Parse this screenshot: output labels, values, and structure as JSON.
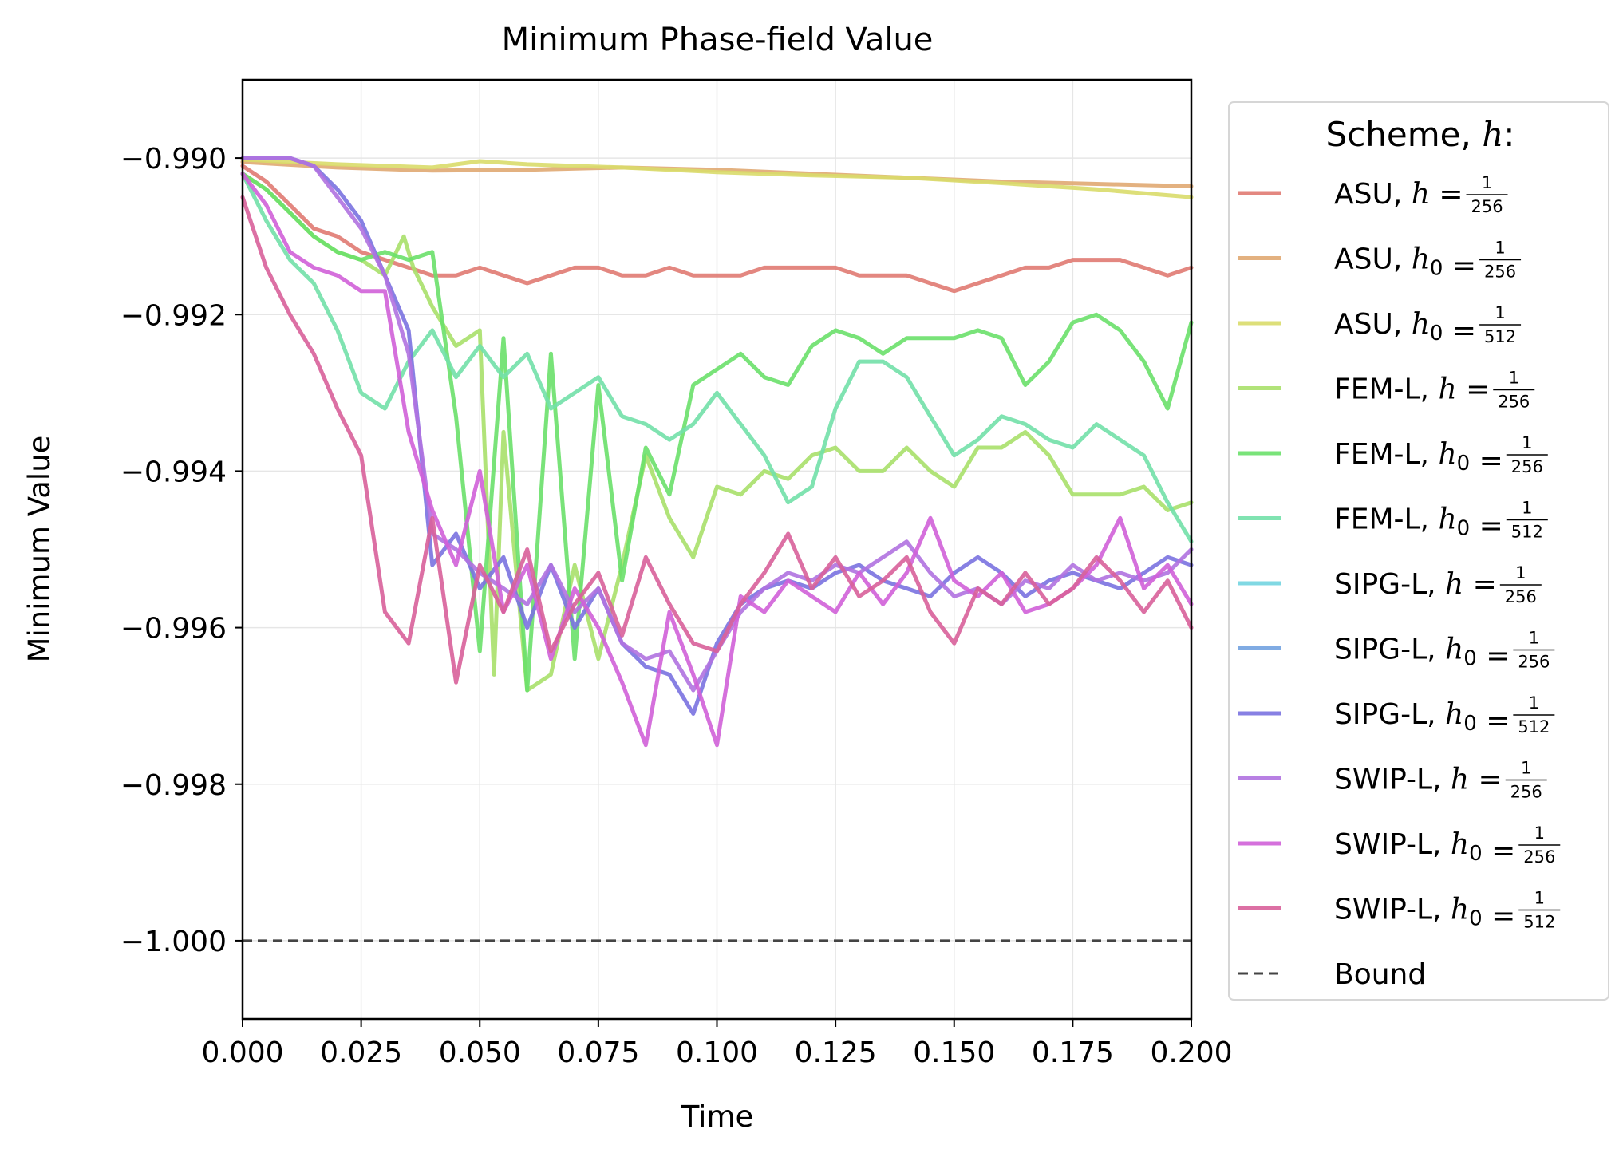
{
  "chart_data": {
    "type": "line",
    "title": "Minimum Phase-field Value",
    "xlabel": "Time",
    "ylabel": "Minimum Value",
    "xlim": [
      0.0,
      0.2
    ],
    "ylim": [
      -1.001,
      -0.989
    ],
    "grid": true,
    "x_ticks": [
      "0.000",
      "0.025",
      "0.050",
      "0.075",
      "0.100",
      "0.125",
      "0.150",
      "0.175",
      "0.200"
    ],
    "y_ticks": [
      "−0.990",
      "−0.992",
      "−0.994",
      "−0.996",
      "−0.998",
      "−1.000"
    ],
    "x_tick_values": [
      0.0,
      0.025,
      0.05,
      0.075,
      0.1,
      0.125,
      0.15,
      0.175,
      0.2
    ],
    "y_tick_values": [
      -0.99,
      -0.992,
      -0.994,
      -0.996,
      -0.998,
      -1.0
    ],
    "legend": {
      "title_prefix": "Scheme,",
      "title_var": "h",
      "title_suffix": ":",
      "placement": "outside-right"
    },
    "bound": {
      "name": "Bound",
      "value": -1.0,
      "color": "#444444"
    },
    "series": [
      {
        "name": "ASU, h = 1/256",
        "scheme": "ASU,",
        "var": "h",
        "sub": "",
        "denom": "256",
        "color": "#e07a72",
        "x": [
          0.0,
          0.005,
          0.01,
          0.015,
          0.02,
          0.025,
          0.03,
          0.035,
          0.04,
          0.045,
          0.05,
          0.055,
          0.06,
          0.065,
          0.07,
          0.075,
          0.08,
          0.085,
          0.09,
          0.095,
          0.1,
          0.105,
          0.11,
          0.115,
          0.12,
          0.125,
          0.13,
          0.135,
          0.14,
          0.145,
          0.15,
          0.155,
          0.16,
          0.165,
          0.17,
          0.175,
          0.18,
          0.185,
          0.19,
          0.195,
          0.2
        ],
        "y": [
          -0.9901,
          -0.9903,
          -0.9906,
          -0.9909,
          -0.991,
          -0.9912,
          -0.9913,
          -0.9914,
          -0.9915,
          -0.9915,
          -0.9914,
          -0.9915,
          -0.9916,
          -0.9915,
          -0.9914,
          -0.9914,
          -0.9915,
          -0.9915,
          -0.9914,
          -0.9915,
          -0.9915,
          -0.9915,
          -0.9914,
          -0.9914,
          -0.9914,
          -0.9914,
          -0.9915,
          -0.9915,
          -0.9915,
          -0.9916,
          -0.9917,
          -0.9916,
          -0.9915,
          -0.9914,
          -0.9914,
          -0.9913,
          -0.9913,
          -0.9913,
          -0.9914,
          -0.9915,
          -0.9914
        ]
      },
      {
        "name": "ASU, h0 = 1/256",
        "scheme": "ASU,",
        "var": "h",
        "sub": "0",
        "denom": "256",
        "color": "#e0a872",
        "x": [
          0.0,
          0.02,
          0.04,
          0.06,
          0.08,
          0.1,
          0.12,
          0.14,
          0.16,
          0.18,
          0.2
        ],
        "y": [
          -0.99005,
          -0.99012,
          -0.99016,
          -0.99015,
          -0.99012,
          -0.99015,
          -0.9902,
          -0.99025,
          -0.9903,
          -0.99033,
          -0.99036
        ]
      },
      {
        "name": "ASU, h0 = 1/512",
        "scheme": "ASU,",
        "var": "h",
        "sub": "0",
        "denom": "512",
        "color": "#d9dc6a",
        "x": [
          0.0,
          0.02,
          0.04,
          0.05,
          0.06,
          0.08,
          0.1,
          0.12,
          0.14,
          0.16,
          0.18,
          0.2
        ],
        "y": [
          -0.99002,
          -0.99008,
          -0.99012,
          -0.99004,
          -0.99008,
          -0.99012,
          -0.99018,
          -0.99022,
          -0.99025,
          -0.99032,
          -0.9904,
          -0.9905
        ]
      },
      {
        "name": "FEM-L, h = 1/256",
        "scheme": "FEM-L,",
        "var": "h",
        "sub": "",
        "denom": "256",
        "color": "#a8e06a",
        "x": [
          0.0,
          0.005,
          0.01,
          0.015,
          0.02,
          0.025,
          0.03,
          0.034,
          0.036,
          0.04,
          0.045,
          0.05,
          0.053,
          0.055,
          0.06,
          0.065,
          0.07,
          0.075,
          0.08,
          0.085,
          0.09,
          0.095,
          0.1,
          0.105,
          0.11,
          0.115,
          0.12,
          0.125,
          0.13,
          0.135,
          0.14,
          0.145,
          0.15,
          0.155,
          0.16,
          0.165,
          0.17,
          0.175,
          0.18,
          0.185,
          0.19,
          0.195,
          0.2
        ],
        "y": [
          -0.9902,
          -0.9904,
          -0.9907,
          -0.991,
          -0.9912,
          -0.9913,
          -0.9915,
          -0.991,
          -0.9914,
          -0.9919,
          -0.9924,
          -0.9922,
          -0.9966,
          -0.9935,
          -0.9968,
          -0.9966,
          -0.9952,
          -0.9964,
          -0.9952,
          -0.9938,
          -0.9946,
          -0.9951,
          -0.9942,
          -0.9943,
          -0.994,
          -0.9941,
          -0.9938,
          -0.9937,
          -0.994,
          -0.994,
          -0.9937,
          -0.994,
          -0.9942,
          -0.9937,
          -0.9937,
          -0.9935,
          -0.9938,
          -0.9943,
          -0.9943,
          -0.9943,
          -0.9942,
          -0.9945,
          -0.9944
        ]
      },
      {
        "name": "FEM-L, h0 = 1/256",
        "scheme": "FEM-L,",
        "var": "h",
        "sub": "0",
        "denom": "256",
        "color": "#6ae06a",
        "x": [
          0.0,
          0.005,
          0.01,
          0.015,
          0.02,
          0.025,
          0.03,
          0.035,
          0.04,
          0.045,
          0.05,
          0.055,
          0.06,
          0.065,
          0.07,
          0.075,
          0.08,
          0.085,
          0.09,
          0.095,
          0.1,
          0.105,
          0.11,
          0.115,
          0.12,
          0.125,
          0.13,
          0.135,
          0.14,
          0.145,
          0.15,
          0.155,
          0.16,
          0.165,
          0.17,
          0.175,
          0.18,
          0.185,
          0.19,
          0.195,
          0.2
        ],
        "y": [
          -0.9902,
          -0.9904,
          -0.9907,
          -0.991,
          -0.9912,
          -0.9913,
          -0.9912,
          -0.9913,
          -0.9912,
          -0.9933,
          -0.9963,
          -0.9923,
          -0.9968,
          -0.9925,
          -0.9964,
          -0.9929,
          -0.9954,
          -0.9937,
          -0.9943,
          -0.9929,
          -0.9927,
          -0.9925,
          -0.9928,
          -0.9929,
          -0.9924,
          -0.9922,
          -0.9923,
          -0.9925,
          -0.9923,
          -0.9923,
          -0.9923,
          -0.9922,
          -0.9923,
          -0.9929,
          -0.9926,
          -0.9921,
          -0.992,
          -0.9922,
          -0.9926,
          -0.9932,
          -0.9921
        ]
      },
      {
        "name": "FEM-L, h0 = 1/512",
        "scheme": "FEM-L,",
        "var": "h",
        "sub": "0",
        "denom": "512",
        "color": "#72e0a8",
        "x": [
          0.0,
          0.005,
          0.01,
          0.015,
          0.02,
          0.025,
          0.03,
          0.035,
          0.04,
          0.045,
          0.05,
          0.055,
          0.06,
          0.065,
          0.07,
          0.075,
          0.08,
          0.085,
          0.09,
          0.095,
          0.1,
          0.105,
          0.11,
          0.115,
          0.12,
          0.125,
          0.13,
          0.135,
          0.14,
          0.145,
          0.15,
          0.155,
          0.16,
          0.165,
          0.17,
          0.175,
          0.18,
          0.185,
          0.19,
          0.195,
          0.2
        ],
        "y": [
          -0.9902,
          -0.9908,
          -0.9913,
          -0.9916,
          -0.9922,
          -0.993,
          -0.9932,
          -0.9926,
          -0.9922,
          -0.9928,
          -0.9924,
          -0.9928,
          -0.9925,
          -0.9932,
          -0.993,
          -0.9928,
          -0.9933,
          -0.9934,
          -0.9936,
          -0.9934,
          -0.993,
          -0.9934,
          -0.9938,
          -0.9944,
          -0.9942,
          -0.9932,
          -0.9926,
          -0.9926,
          -0.9928,
          -0.9933,
          -0.9938,
          -0.9936,
          -0.9933,
          -0.9934,
          -0.9936,
          -0.9937,
          -0.9934,
          -0.9936,
          -0.9938,
          -0.9944,
          -0.9949
        ]
      },
      {
        "name": "SIPG-L, h = 1/256",
        "scheme": "SIPG-L,",
        "var": "h",
        "sub": "",
        "denom": "256",
        "color": "#72d4e0",
        "x": [],
        "y": []
      },
      {
        "name": "SIPG-L, h0 = 1/256",
        "scheme": "SIPG-L,",
        "var": "h",
        "sub": "0",
        "denom": "256",
        "color": "#72a2e0",
        "x": [],
        "y": []
      },
      {
        "name": "SIPG-L, h0 = 1/512",
        "scheme": "SIPG-L,",
        "var": "h",
        "sub": "0",
        "denom": "512",
        "color": "#7a72e0",
        "x": [
          0.0,
          0.005,
          0.01,
          0.015,
          0.02,
          0.025,
          0.03,
          0.035,
          0.04,
          0.045,
          0.05,
          0.055,
          0.06,
          0.065,
          0.07,
          0.075,
          0.08,
          0.085,
          0.09,
          0.095,
          0.1,
          0.105,
          0.11,
          0.115,
          0.12,
          0.125,
          0.13,
          0.135,
          0.14,
          0.145,
          0.15,
          0.155,
          0.16,
          0.165,
          0.17,
          0.175,
          0.18,
          0.185,
          0.19,
          0.195,
          0.2
        ],
        "y": [
          -0.99,
          -0.99,
          -0.99,
          -0.9901,
          -0.9904,
          -0.9908,
          -0.9915,
          -0.9922,
          -0.9952,
          -0.9948,
          -0.9955,
          -0.9951,
          -0.996,
          -0.9952,
          -0.996,
          -0.9955,
          -0.9962,
          -0.9965,
          -0.9966,
          -0.9971,
          -0.9962,
          -0.9957,
          -0.9955,
          -0.9954,
          -0.9955,
          -0.9953,
          -0.9952,
          -0.9954,
          -0.9955,
          -0.9956,
          -0.9953,
          -0.9951,
          -0.9953,
          -0.9956,
          -0.9954,
          -0.9953,
          -0.9954,
          -0.9955,
          -0.9953,
          -0.9951,
          -0.9952
        ]
      },
      {
        "name": "SWIP-L, h = 1/256",
        "scheme": "SWIP-L,",
        "var": "h",
        "sub": "",
        "denom": "256",
        "color": "#b072e0",
        "x": [
          0.0,
          0.005,
          0.01,
          0.015,
          0.02,
          0.025,
          0.03,
          0.035,
          0.04,
          0.045,
          0.05,
          0.055,
          0.06,
          0.065,
          0.07,
          0.075,
          0.08,
          0.085,
          0.09,
          0.095,
          0.1,
          0.105,
          0.11,
          0.115,
          0.12,
          0.125,
          0.13,
          0.135,
          0.14,
          0.145,
          0.15,
          0.155,
          0.16,
          0.165,
          0.17,
          0.175,
          0.18,
          0.185,
          0.19,
          0.195,
          0.2
        ],
        "y": [
          -0.99,
          -0.99,
          -0.99,
          -0.9901,
          -0.9905,
          -0.9909,
          -0.9915,
          -0.9925,
          -0.9948,
          -0.995,
          -0.9953,
          -0.9955,
          -0.9957,
          -0.9952,
          -0.9958,
          -0.9955,
          -0.9962,
          -0.9964,
          -0.9963,
          -0.9968,
          -0.9963,
          -0.9958,
          -0.9955,
          -0.9953,
          -0.9954,
          -0.9952,
          -0.9953,
          -0.9951,
          -0.9949,
          -0.9953,
          -0.9956,
          -0.9955,
          -0.9957,
          -0.9954,
          -0.9955,
          -0.9952,
          -0.9954,
          -0.9953,
          -0.9954,
          -0.9953,
          -0.995
        ]
      },
      {
        "name": "SWIP-L, h0 = 1/256",
        "scheme": "SWIP-L,",
        "var": "h",
        "sub": "0",
        "denom": "256",
        "color": "#d060d8",
        "x": [
          0.0,
          0.005,
          0.01,
          0.015,
          0.02,
          0.025,
          0.03,
          0.035,
          0.04,
          0.045,
          0.05,
          0.055,
          0.06,
          0.065,
          0.07,
          0.075,
          0.08,
          0.085,
          0.09,
          0.095,
          0.1,
          0.105,
          0.11,
          0.115,
          0.12,
          0.125,
          0.13,
          0.135,
          0.14,
          0.145,
          0.15,
          0.155,
          0.16,
          0.165,
          0.17,
          0.175,
          0.18,
          0.185,
          0.19,
          0.195,
          0.2
        ],
        "y": [
          -0.9902,
          -0.9906,
          -0.9912,
          -0.9914,
          -0.9915,
          -0.9917,
          -0.9917,
          -0.9935,
          -0.9945,
          -0.9952,
          -0.994,
          -0.9958,
          -0.9952,
          -0.9964,
          -0.9955,
          -0.996,
          -0.9967,
          -0.9975,
          -0.9958,
          -0.9966,
          -0.9975,
          -0.9956,
          -0.9958,
          -0.9954,
          -0.9956,
          -0.9958,
          -0.9953,
          -0.9957,
          -0.9953,
          -0.9946,
          -0.9954,
          -0.9956,
          -0.9953,
          -0.9958,
          -0.9957,
          -0.9955,
          -0.9952,
          -0.9946,
          -0.9955,
          -0.9952,
          -0.9957
        ]
      },
      {
        "name": "SWIP-L, h0 = 1/512",
        "scheme": "SWIP-L,",
        "var": "h",
        "sub": "0",
        "denom": "512",
        "color": "#d8609a",
        "x": [
          0.0,
          0.005,
          0.01,
          0.015,
          0.02,
          0.025,
          0.03,
          0.035,
          0.04,
          0.045,
          0.05,
          0.055,
          0.06,
          0.065,
          0.07,
          0.075,
          0.08,
          0.085,
          0.09,
          0.095,
          0.1,
          0.105,
          0.11,
          0.115,
          0.12,
          0.125,
          0.13,
          0.135,
          0.14,
          0.145,
          0.15,
          0.155,
          0.16,
          0.165,
          0.17,
          0.175,
          0.18,
          0.185,
          0.19,
          0.195,
          0.2
        ],
        "y": [
          -0.9905,
          -0.9914,
          -0.992,
          -0.9925,
          -0.9932,
          -0.9938,
          -0.9958,
          -0.9962,
          -0.9946,
          -0.9967,
          -0.9952,
          -0.9958,
          -0.995,
          -0.9963,
          -0.9957,
          -0.9953,
          -0.9961,
          -0.9951,
          -0.9957,
          -0.9962,
          -0.9963,
          -0.9957,
          -0.9953,
          -0.9948,
          -0.9955,
          -0.9951,
          -0.9956,
          -0.9954,
          -0.9951,
          -0.9958,
          -0.9962,
          -0.9955,
          -0.9957,
          -0.9953,
          -0.9957,
          -0.9955,
          -0.9951,
          -0.9954,
          -0.9958,
          -0.9954,
          -0.996
        ]
      }
    ]
  }
}
